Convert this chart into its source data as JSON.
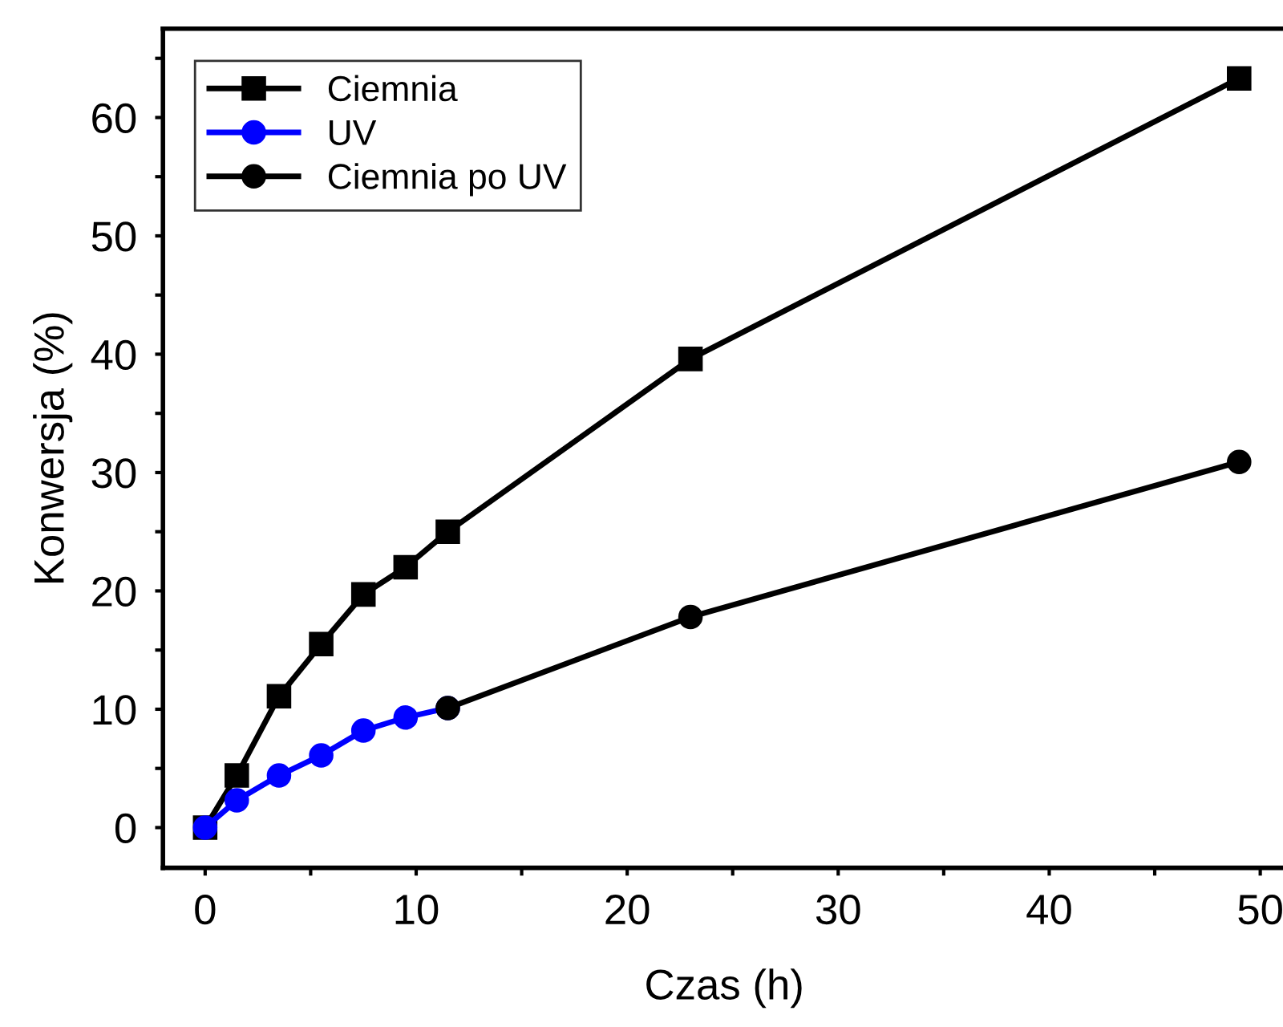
{
  "chart_data": {
    "type": "line",
    "xlabel": "Czas (h)",
    "ylabel": "Konwersja (%)",
    "xlim": [
      -2,
      51.2
    ],
    "ylim": [
      -3.4,
      67.5
    ],
    "xticks": [
      0,
      {
        "value": 5,
        "label": null
      },
      10,
      {
        "value": 15,
        "label": null
      },
      20,
      {
        "value": 25,
        "label": null
      },
      30,
      {
        "value": 35,
        "label": null
      },
      40,
      {
        "value": 45,
        "label": null
      },
      50
    ],
    "yticks": [
      0,
      {
        "value": 5,
        "label": null
      },
      10,
      {
        "value": 15,
        "label": null
      },
      20,
      {
        "value": 25,
        "label": null
      },
      30,
      {
        "value": 35,
        "label": null
      },
      40,
      {
        "value": 45,
        "label": null
      },
      50,
      {
        "value": 55,
        "label": null
      },
      60,
      {
        "value": 65,
        "label": null
      }
    ],
    "grid": false,
    "legend": "top left",
    "line_style": "solid",
    "series": [
      {
        "name": "Ciemnia",
        "color": "#000000",
        "marker": "square",
        "x": [
          0,
          1.5,
          3.5,
          5.5,
          7.5,
          9.5,
          11.5,
          23,
          49
        ],
        "values": [
          0,
          4.4,
          11.1,
          15.5,
          19.7,
          22.0,
          25.0,
          39.6,
          63.3
        ]
      },
      {
        "name": "UV",
        "color": "#0000ff",
        "marker": "circle",
        "x": [
          0,
          1.5,
          3.5,
          5.5,
          7.5,
          9.5,
          11.5
        ],
        "values": [
          0,
          2.3,
          4.4,
          6.1,
          8.2,
          9.3,
          10.1
        ]
      },
      {
        "name": "Ciemnia po UV",
        "color": "#000000",
        "marker": "circle",
        "x": [
          11.5,
          23,
          49
        ],
        "values": [
          10.1,
          17.8,
          30.9
        ]
      }
    ]
  }
}
